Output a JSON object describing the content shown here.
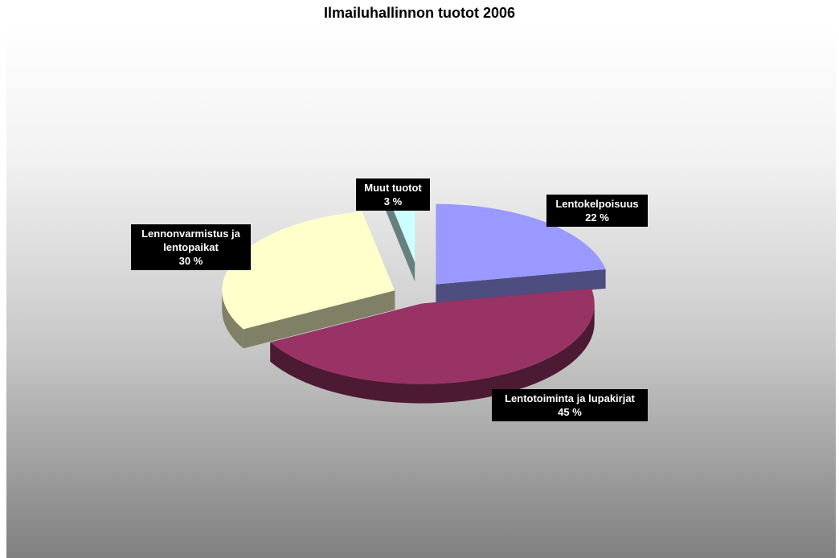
{
  "chart_data": {
    "type": "pie",
    "title": "Ilmailuhallinnon tuotot 2006",
    "categories": [
      "Lentokelpoisuus",
      "Lentotoiminta ja lupakirjat",
      "Lennonvarmistus ja lentopaikat",
      "Muut tuotot"
    ],
    "values": [
      22,
      45,
      30,
      3
    ],
    "value_labels": [
      "22 %",
      "45 %",
      "30 %",
      "3 %"
    ],
    "colors": [
      "#9999ff",
      "#993366",
      "#ffffcc",
      "#ccffff"
    ]
  }
}
